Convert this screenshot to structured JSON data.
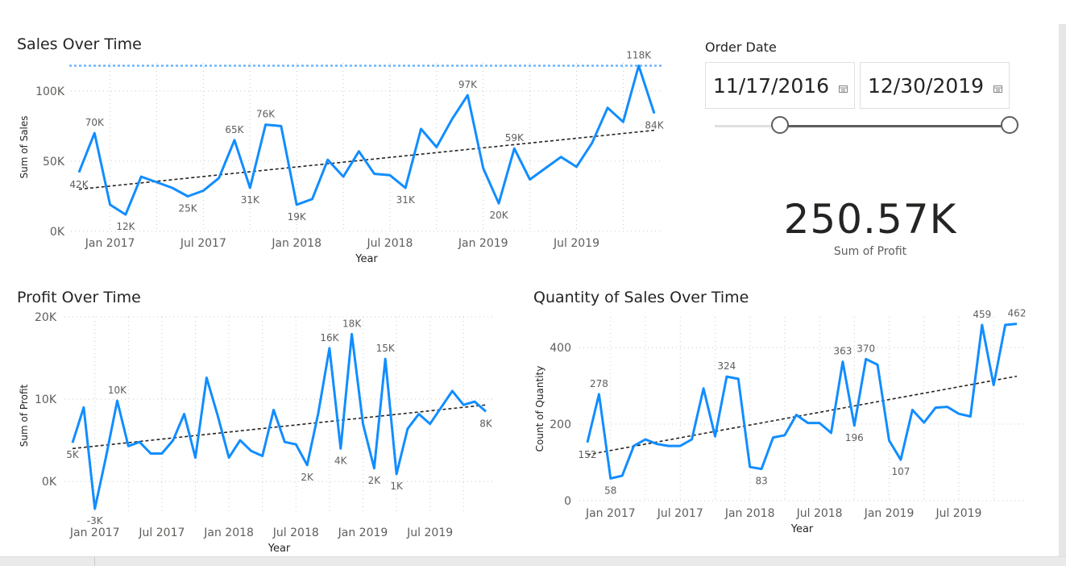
{
  "sales_chart": {
    "title": "Sales Over Time"
  },
  "profit_chart": {
    "title": "Profit Over Time"
  },
  "quantity_chart": {
    "title": "Quantity of Sales Over Time"
  },
  "slicer": {
    "title": "Order Date",
    "start_date": "11/17/2016",
    "end_date": "12/30/2019",
    "start_icon": "calendar-icon",
    "end_icon": "calendar-icon",
    "range_fraction": [
      0.22,
      1.0
    ]
  },
  "kpi": {
    "value": "250.57K",
    "label": "Sum of Profit"
  },
  "colors": {
    "series": "#118dff",
    "trend": "#252423",
    "ref_line": "#6cb6ff",
    "grid": "#c8c8c8",
    "axis_text": "#605e5c"
  },
  "chart_data": [
    {
      "type": "line",
      "title": "Sales Over Time",
      "xlabel": "Year",
      "ylabel": "Sum of Sales",
      "x_tick_labels": [
        "Jan 2017",
        "Jul 2017",
        "Jan 2018",
        "Jul 2018",
        "Jan 2019",
        "Jul 2019"
      ],
      "x_tick_positions": [
        2,
        8,
        14,
        20,
        26,
        32
      ],
      "y_ticks": [
        0,
        50000,
        100000
      ],
      "y_tick_labels": [
        "0K",
        "50K",
        "100K"
      ],
      "ylim": [
        0,
        120000
      ],
      "x_count": 38,
      "values": [
        42000,
        70000,
        19000,
        12000,
        39000,
        35000,
        31000,
        25000,
        29000,
        38000,
        65000,
        31000,
        76000,
        75000,
        19000,
        23000,
        51000,
        39000,
        57000,
        41000,
        40000,
        31000,
        73000,
        60000,
        80000,
        97000,
        45000,
        20000,
        59000,
        37000,
        45000,
        53000,
        46000,
        63000,
        88000,
        78000,
        118000,
        84000
      ],
      "data_labels": [
        {
          "i": 0,
          "text": "42K"
        },
        {
          "i": 1,
          "text": "70K"
        },
        {
          "i": 3,
          "text": "12K"
        },
        {
          "i": 7,
          "text": "25K"
        },
        {
          "i": 10,
          "text": "65K"
        },
        {
          "i": 11,
          "text": "31K"
        },
        {
          "i": 12,
          "text": "76K"
        },
        {
          "i": 14,
          "text": "19K"
        },
        {
          "i": 21,
          "text": "31K"
        },
        {
          "i": 25,
          "text": "97K"
        },
        {
          "i": 27,
          "text": "20K"
        },
        {
          "i": 28,
          "text": "59K"
        },
        {
          "i": 36,
          "text": "118K"
        },
        {
          "i": 37,
          "text": "84K"
        }
      ],
      "trend": [
        30000,
        72000
      ],
      "reference_line": 118000
    },
    {
      "type": "line",
      "title": "Profit Over Time",
      "xlabel": "Year",
      "ylabel": "Sum of Profit",
      "x_tick_labels": [
        "Jan 2017",
        "Jul 2017",
        "Jan 2018",
        "Jul 2018",
        "Jan 2019",
        "Jul 2019"
      ],
      "x_tick_positions": [
        2,
        8,
        14,
        20,
        26,
        32
      ],
      "y_ticks": [
        0,
        10000,
        20000
      ],
      "y_tick_labels": [
        "0K",
        "10K",
        "20K"
      ],
      "ylim": [
        -4000,
        20000
      ],
      "x_count": 38,
      "values": [
        4700,
        9000,
        -3300,
        3000,
        9800,
        4300,
        4800,
        3400,
        3400,
        5000,
        8200,
        2900,
        12600,
        8000,
        2900,
        5000,
        3700,
        3100,
        8700,
        4800,
        4500,
        2000,
        8300,
        16200,
        4000,
        17900,
        7000,
        1600,
        14900,
        900,
        6400,
        8200,
        7000,
        9000,
        11000,
        9300,
        9700,
        8500
      ],
      "data_labels": [
        {
          "i": 0,
          "text": "5K"
        },
        {
          "i": 2,
          "text": "-3K"
        },
        {
          "i": 4,
          "text": "10K"
        },
        {
          "i": 21,
          "text": "2K"
        },
        {
          "i": 23,
          "text": "16K"
        },
        {
          "i": 24,
          "text": "4K"
        },
        {
          "i": 25,
          "text": "18K"
        },
        {
          "i": 27,
          "text": "2K"
        },
        {
          "i": 28,
          "text": "15K"
        },
        {
          "i": 29,
          "text": "1K"
        },
        {
          "i": 37,
          "text": "8K"
        }
      ],
      "trend": [
        4000,
        9300
      ]
    },
    {
      "type": "line",
      "title": "Quantity of Sales Over Time",
      "xlabel": "Year",
      "ylabel": "Count of Quantity",
      "x_tick_labels": [
        "Jan 2017",
        "Jul 2017",
        "Jan 2018",
        "Jul 2018",
        "Jan 2019",
        "Jul 2019"
      ],
      "x_tick_positions": [
        2,
        8,
        14,
        20,
        26,
        32
      ],
      "y_ticks": [
        0,
        200,
        400
      ],
      "y_tick_labels": [
        "0",
        "200",
        "400"
      ],
      "ylim": [
        0,
        480
      ],
      "x_count": 38,
      "values": [
        152,
        278,
        58,
        65,
        143,
        160,
        148,
        143,
        143,
        160,
        293,
        168,
        324,
        318,
        88,
        83,
        165,
        171,
        224,
        203,
        203,
        177,
        363,
        196,
        370,
        355,
        157,
        107,
        237,
        204,
        243,
        245,
        227,
        220,
        459,
        302,
        459,
        462
      ],
      "data_labels": [
        {
          "i": 0,
          "text": "152"
        },
        {
          "i": 1,
          "text": "278"
        },
        {
          "i": 2,
          "text": "58"
        },
        {
          "i": 12,
          "text": "324"
        },
        {
          "i": 15,
          "text": "83"
        },
        {
          "i": 22,
          "text": "363"
        },
        {
          "i": 23,
          "text": "196"
        },
        {
          "i": 24,
          "text": "370"
        },
        {
          "i": 27,
          "text": "107"
        },
        {
          "i": 34,
          "text": "459"
        },
        {
          "i": 37,
          "text": "462"
        }
      ],
      "trend": [
        120,
        325
      ]
    }
  ]
}
